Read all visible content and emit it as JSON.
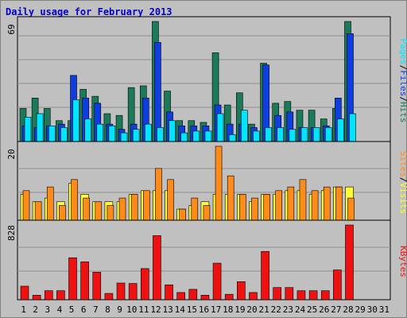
{
  "title": "Daily usage for February 2013",
  "colors": {
    "hits": "#1a7a5a",
    "files": "#0e3ee0",
    "pages": "#00e4ff",
    "visits": "#ffff33",
    "sites": "#ff8c1a",
    "kbytes": "#ee1111",
    "weekend_day": "#1a8a4a"
  },
  "chart_data": {
    "type": "bar",
    "categories": [
      "1",
      "2",
      "3",
      "4",
      "5",
      "6",
      "7",
      "8",
      "9",
      "10",
      "11",
      "12",
      "13",
      "14",
      "15",
      "16",
      "17",
      "18",
      "19",
      "20",
      "21",
      "22",
      "23",
      "24",
      "25",
      "26",
      "27",
      "28",
      "29",
      "30",
      "31"
    ],
    "weekend_days": [
      "2",
      "3",
      "9",
      "10",
      "16",
      "17",
      "23",
      "24",
      "30",
      "31"
    ],
    "panels": [
      {
        "id": "hits-files-pages",
        "ymax": 69,
        "ymax_label": "69",
        "ylabel_parts": [
          "Pages",
          "Files",
          "Hits"
        ],
        "series": [
          {
            "name": "Hits",
            "values": [
              19,
              25,
              19,
              12,
              12,
              30,
              26,
              16,
              15,
              31,
              32,
              69,
              29,
              12,
              12,
              11,
              51,
              21,
              28,
              10,
              45,
              22,
              23,
              18,
              18,
              13,
              19,
              69,
              0,
              0,
              0
            ]
          },
          {
            "name": "Files",
            "values": [
              9,
              8,
              9,
              10,
              38,
              25,
              22,
              10,
              7,
              10,
              25,
              57,
              17,
              9,
              9,
              9,
              21,
              10,
              10,
              8,
              44,
              15,
              17,
              8,
              8,
              9,
              25,
              62,
              0,
              0,
              0
            ]
          },
          {
            "name": "Pages",
            "values": [
              14,
              16,
              9,
              8,
              24,
              13,
              10,
              9,
              5,
              7,
              10,
              8,
              12,
              5,
              6,
              6,
              16,
              4,
              18,
              6,
              8,
              8,
              7,
              8,
              8,
              8,
              13,
              16,
              0,
              0,
              0
            ]
          }
        ]
      },
      {
        "id": "visits-sites",
        "ymax": 20,
        "ymax_label": "20",
        "ylabel_parts": [
          "Sites",
          "Visits"
        ],
        "series": [
          {
            "name": "Visits",
            "values": [
              7,
              5,
              6,
              5,
              10,
              7,
              5,
              5,
              5,
              7,
              8,
              8,
              8,
              3,
              4,
              5,
              7,
              7,
              7,
              5,
              7,
              7,
              8,
              8,
              7,
              8,
              9,
              9,
              0,
              0,
              0
            ]
          },
          {
            "name": "Sites",
            "values": [
              8,
              5,
              9,
              4,
              11,
              6,
              5,
              4,
              6,
              7,
              8,
              14,
              11,
              3,
              6,
              4,
              20,
              12,
              7,
              6,
              7,
              8,
              9,
              11,
              8,
              9,
              9,
              6,
              0,
              0,
              0
            ]
          }
        ]
      },
      {
        "id": "kbytes",
        "ymax": 828,
        "ymax_label": "828",
        "ylabel_parts": [
          "KBytes"
        ],
        "series": [
          {
            "name": "KBytes",
            "values": [
              150,
              50,
              100,
              100,
              465,
              420,
              305,
              70,
              185,
              180,
              345,
              710,
              165,
              80,
              115,
              50,
              405,
              60,
              200,
              80,
              535,
              135,
              135,
              100,
              100,
              100,
              330,
              828,
              0,
              0,
              0
            ]
          }
        ]
      }
    ]
  }
}
